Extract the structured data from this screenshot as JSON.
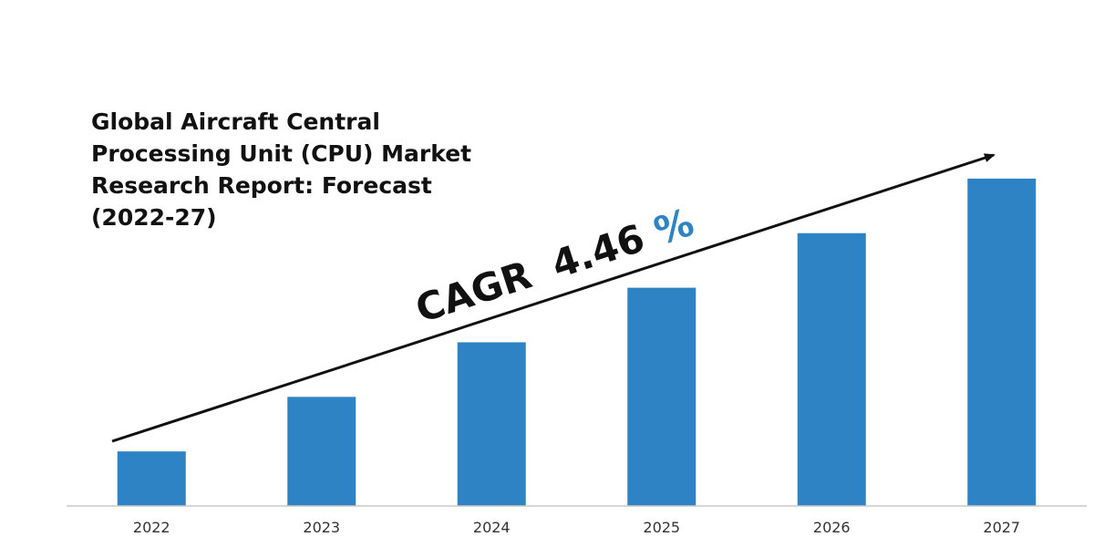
{
  "chart_data": {
    "type": "bar",
    "title": "Global Aircraft Central\nProcessing Unit (CPU) Market\nResearch Report: Forecast\n(2022-27)",
    "categories": [
      "2022",
      "2023",
      "2024",
      "2025",
      "2026",
      "2027"
    ],
    "values": [
      1,
      2,
      3,
      4,
      5,
      6
    ],
    "ylim": [
      0,
      6.6
    ],
    "grid": false,
    "legend": "none",
    "annotation": {
      "label": "CAGR",
      "value": "4.46",
      "unit": "%"
    },
    "colors": {
      "bar": "#2E83C5",
      "annotation": "#111111",
      "accent": "#2E83C5",
      "axis": "#c8c8c8"
    }
  }
}
